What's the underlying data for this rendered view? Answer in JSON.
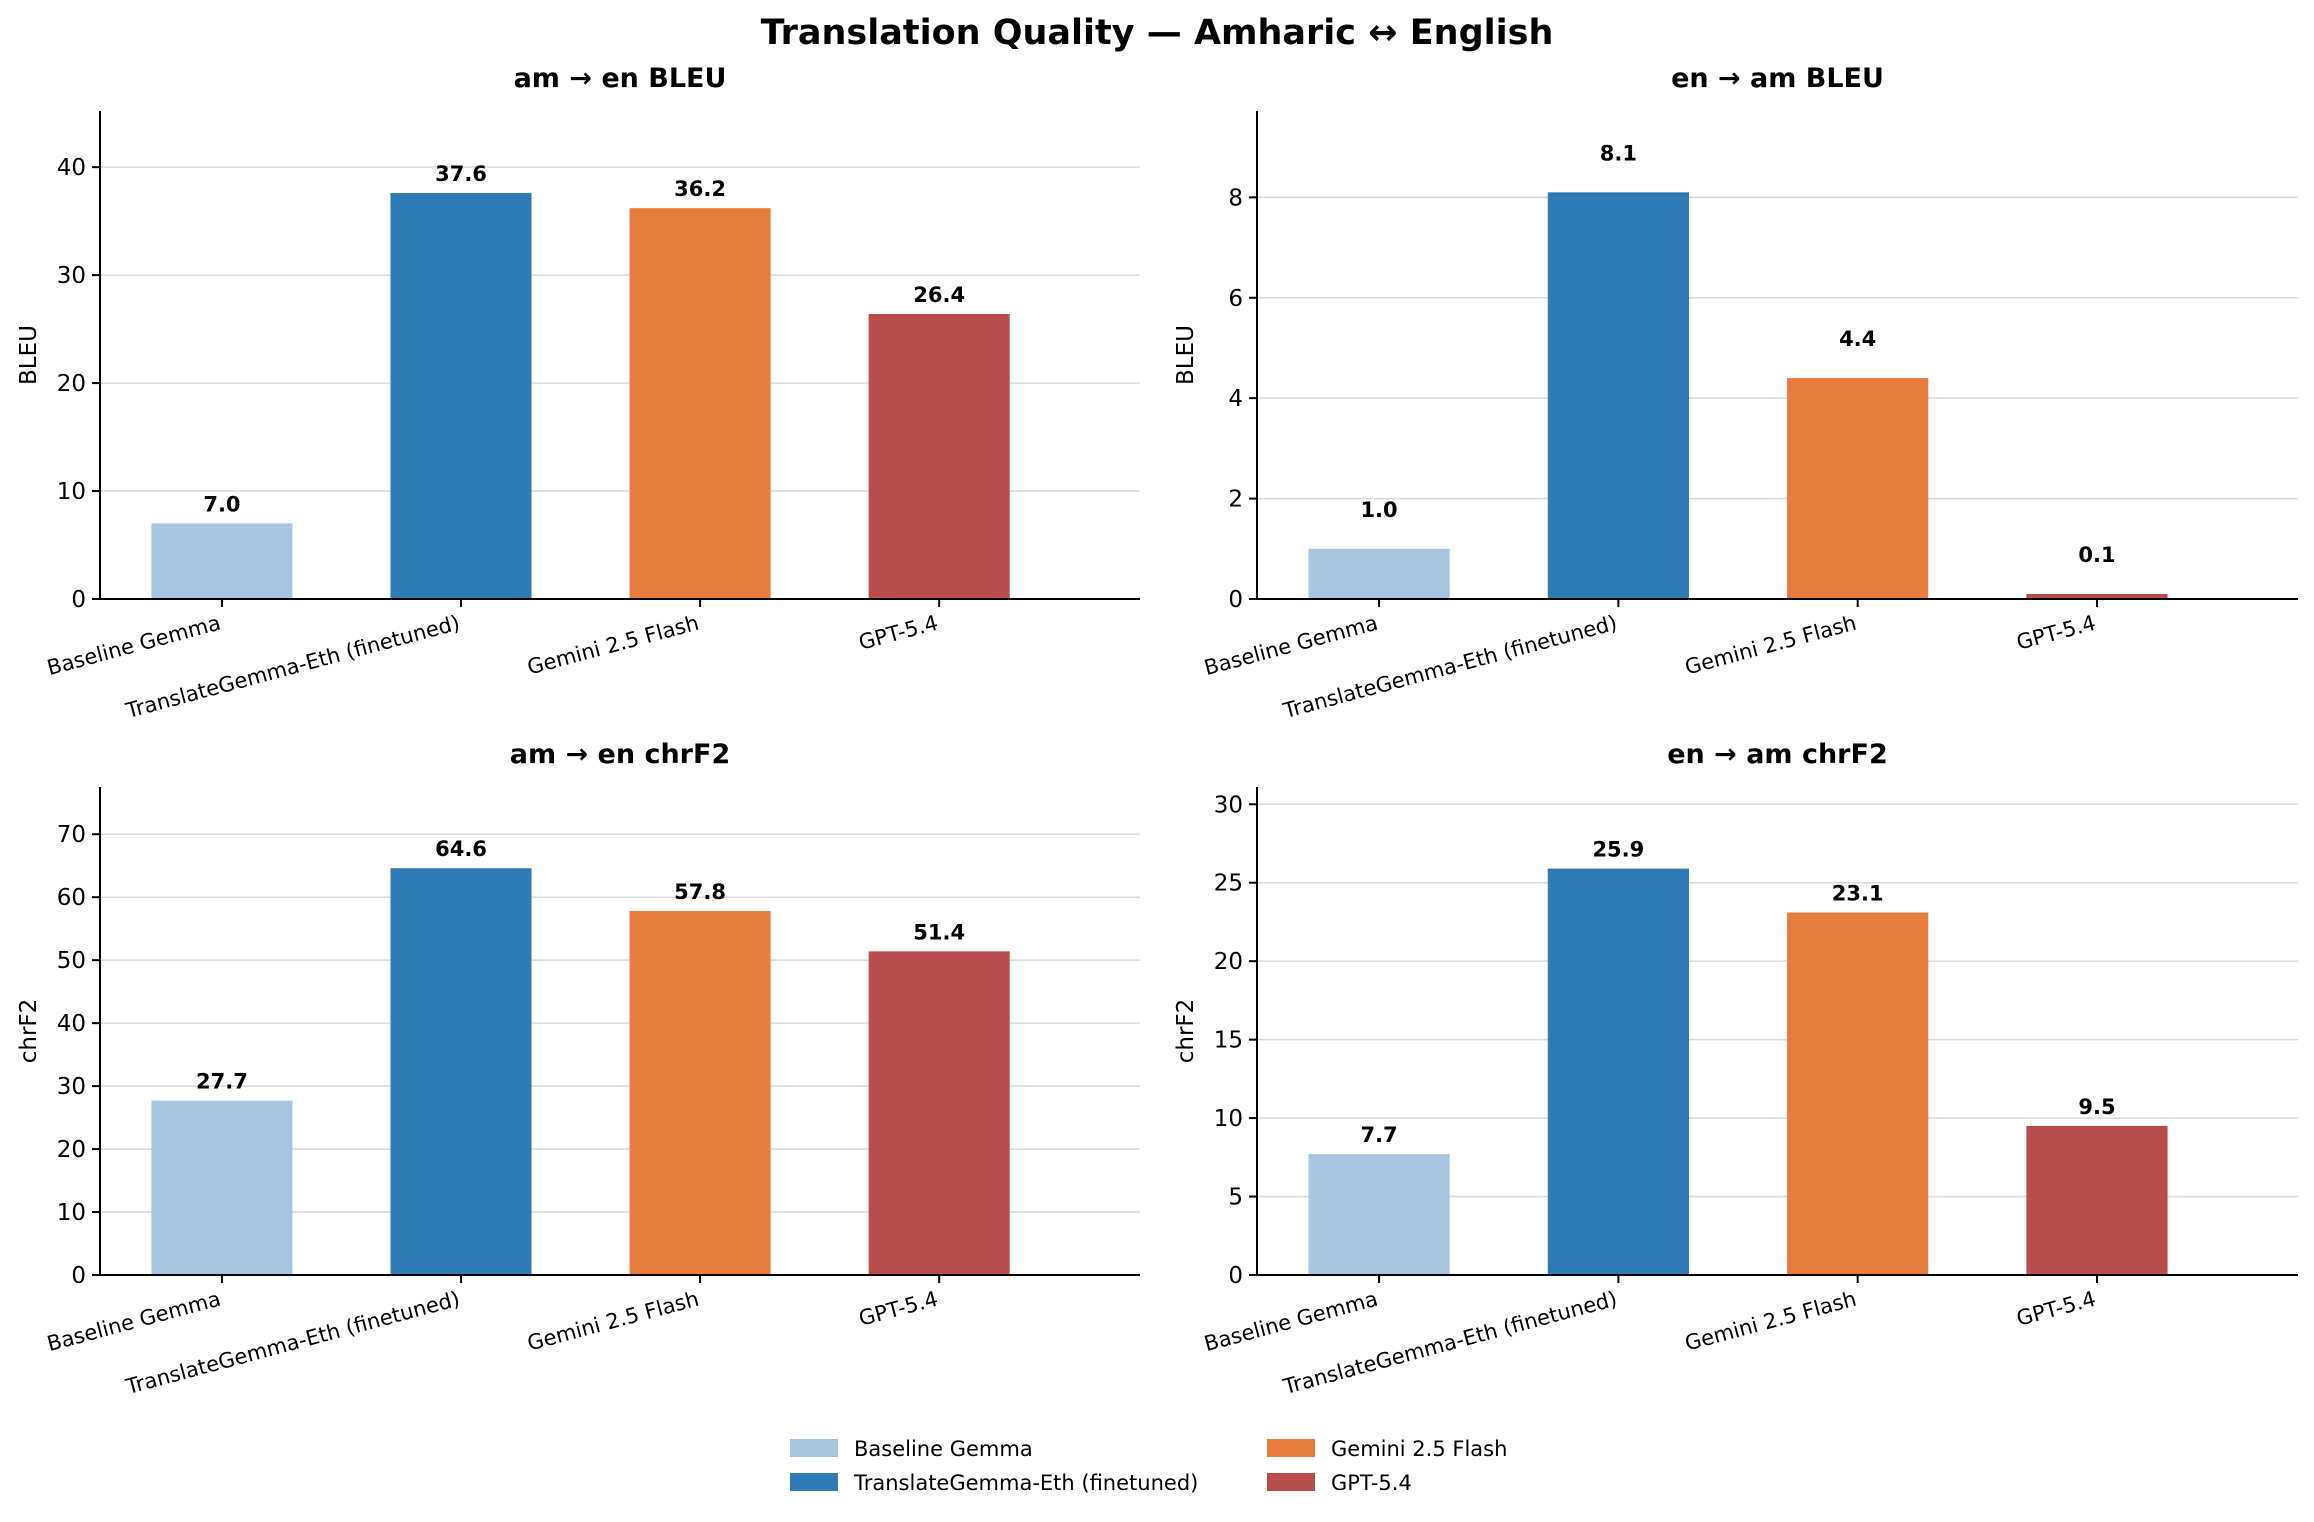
{
  "figure": {
    "title": "Translation Quality — Amharic ↔ English"
  },
  "chart_data": [
    {
      "type": "bar",
      "title": "am → en   BLEU",
      "xlabel": "",
      "ylabel": "BLEU",
      "categories": [
        "Baseline Gemma",
        "TranslateGemma-Eth (finetuned)",
        "Gemini 2.5 Flash",
        "GPT-5.4"
      ],
      "values": [
        7.0,
        37.6,
        36.2,
        26.4
      ],
      "data_labels": [
        "7.0",
        "37.6",
        "36.2",
        "26.4"
      ],
      "ylim": [
        0,
        45.2
      ],
      "yticks": [
        0,
        10,
        20,
        30,
        40
      ],
      "grid": true
    },
    {
      "type": "bar",
      "title": "en → am   BLEU",
      "xlabel": "",
      "ylabel": "BLEU",
      "categories": [
        "Baseline Gemma",
        "TranslateGemma-Eth (finetuned)",
        "Gemini 2.5 Flash",
        "GPT-5.4"
      ],
      "values": [
        1.0,
        8.1,
        4.4,
        0.1
      ],
      "data_labels": [
        "1.0",
        "8.1",
        "4.4",
        "0.1"
      ],
      "ylim": [
        0,
        9.72
      ],
      "yticks": [
        0,
        2,
        4,
        6,
        8
      ],
      "grid": true
    },
    {
      "type": "bar",
      "title": "am → en   chrF2",
      "xlabel": "",
      "ylabel": "chrF2",
      "categories": [
        "Baseline Gemma",
        "TranslateGemma-Eth (finetuned)",
        "Gemini 2.5 Flash",
        "GPT-5.4"
      ],
      "values": [
        27.7,
        64.6,
        57.8,
        51.4
      ],
      "data_labels": [
        "27.7",
        "64.6",
        "57.8",
        "51.4"
      ],
      "ylim": [
        0,
        77.5
      ],
      "yticks": [
        0,
        10,
        20,
        30,
        40,
        50,
        60,
        70
      ],
      "grid": true
    },
    {
      "type": "bar",
      "title": "en → am   chrF2",
      "xlabel": "",
      "ylabel": "chrF2",
      "categories": [
        "Baseline Gemma",
        "TranslateGemma-Eth (finetuned)",
        "Gemini 2.5 Flash",
        "GPT-5.4"
      ],
      "values": [
        7.7,
        25.9,
        23.1,
        9.5
      ],
      "data_labels": [
        "7.7",
        "25.9",
        "23.1",
        "9.5"
      ],
      "ylim": [
        0,
        31.1
      ],
      "yticks": [
        0,
        5,
        10,
        15,
        20,
        25,
        30
      ],
      "grid": true
    }
  ],
  "legend": {
    "placement": "bottom-center",
    "entries": [
      {
        "label": "Baseline Gemma",
        "color": "#a9c4e0"
      },
      {
        "label": "TranslateGemma-Eth (finetuned)",
        "color": "#2e7ab5"
      },
      {
        "label": "Gemini 2.5 Flash",
        "color": "#e87c3e"
      },
      {
        "label": "GPT-5.4",
        "color": "#b84d4c"
      }
    ]
  }
}
